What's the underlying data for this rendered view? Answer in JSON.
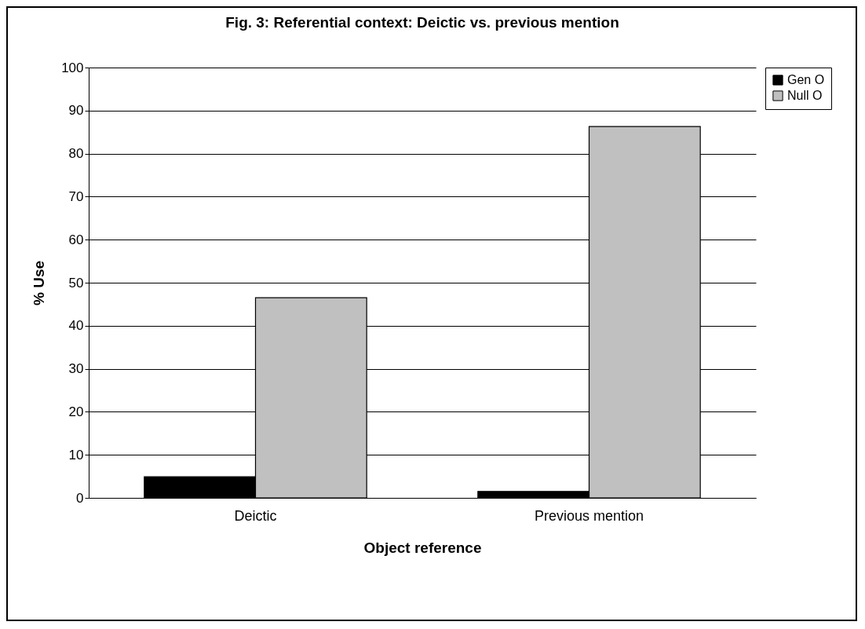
{
  "chart_data": {
    "type": "bar",
    "title": "Fig. 3: Referential context: Deictic vs. previous mention",
    "xlabel": "Object reference",
    "ylabel": "% Use",
    "categories": [
      "Deictic",
      "Previous mention"
    ],
    "series": [
      {
        "name": "Gen O",
        "color": "#000000",
        "values": [
          4.9,
          1.5
        ]
      },
      {
        "name": "Null O",
        "color": "#c0c0c0",
        "values": [
          46.5,
          86.3
        ]
      }
    ],
    "ylim": [
      0,
      100
    ],
    "yticks": [
      0,
      10,
      20,
      30,
      40,
      50,
      60,
      70,
      80,
      90,
      100
    ],
    "grid": "y",
    "legend": "right"
  }
}
